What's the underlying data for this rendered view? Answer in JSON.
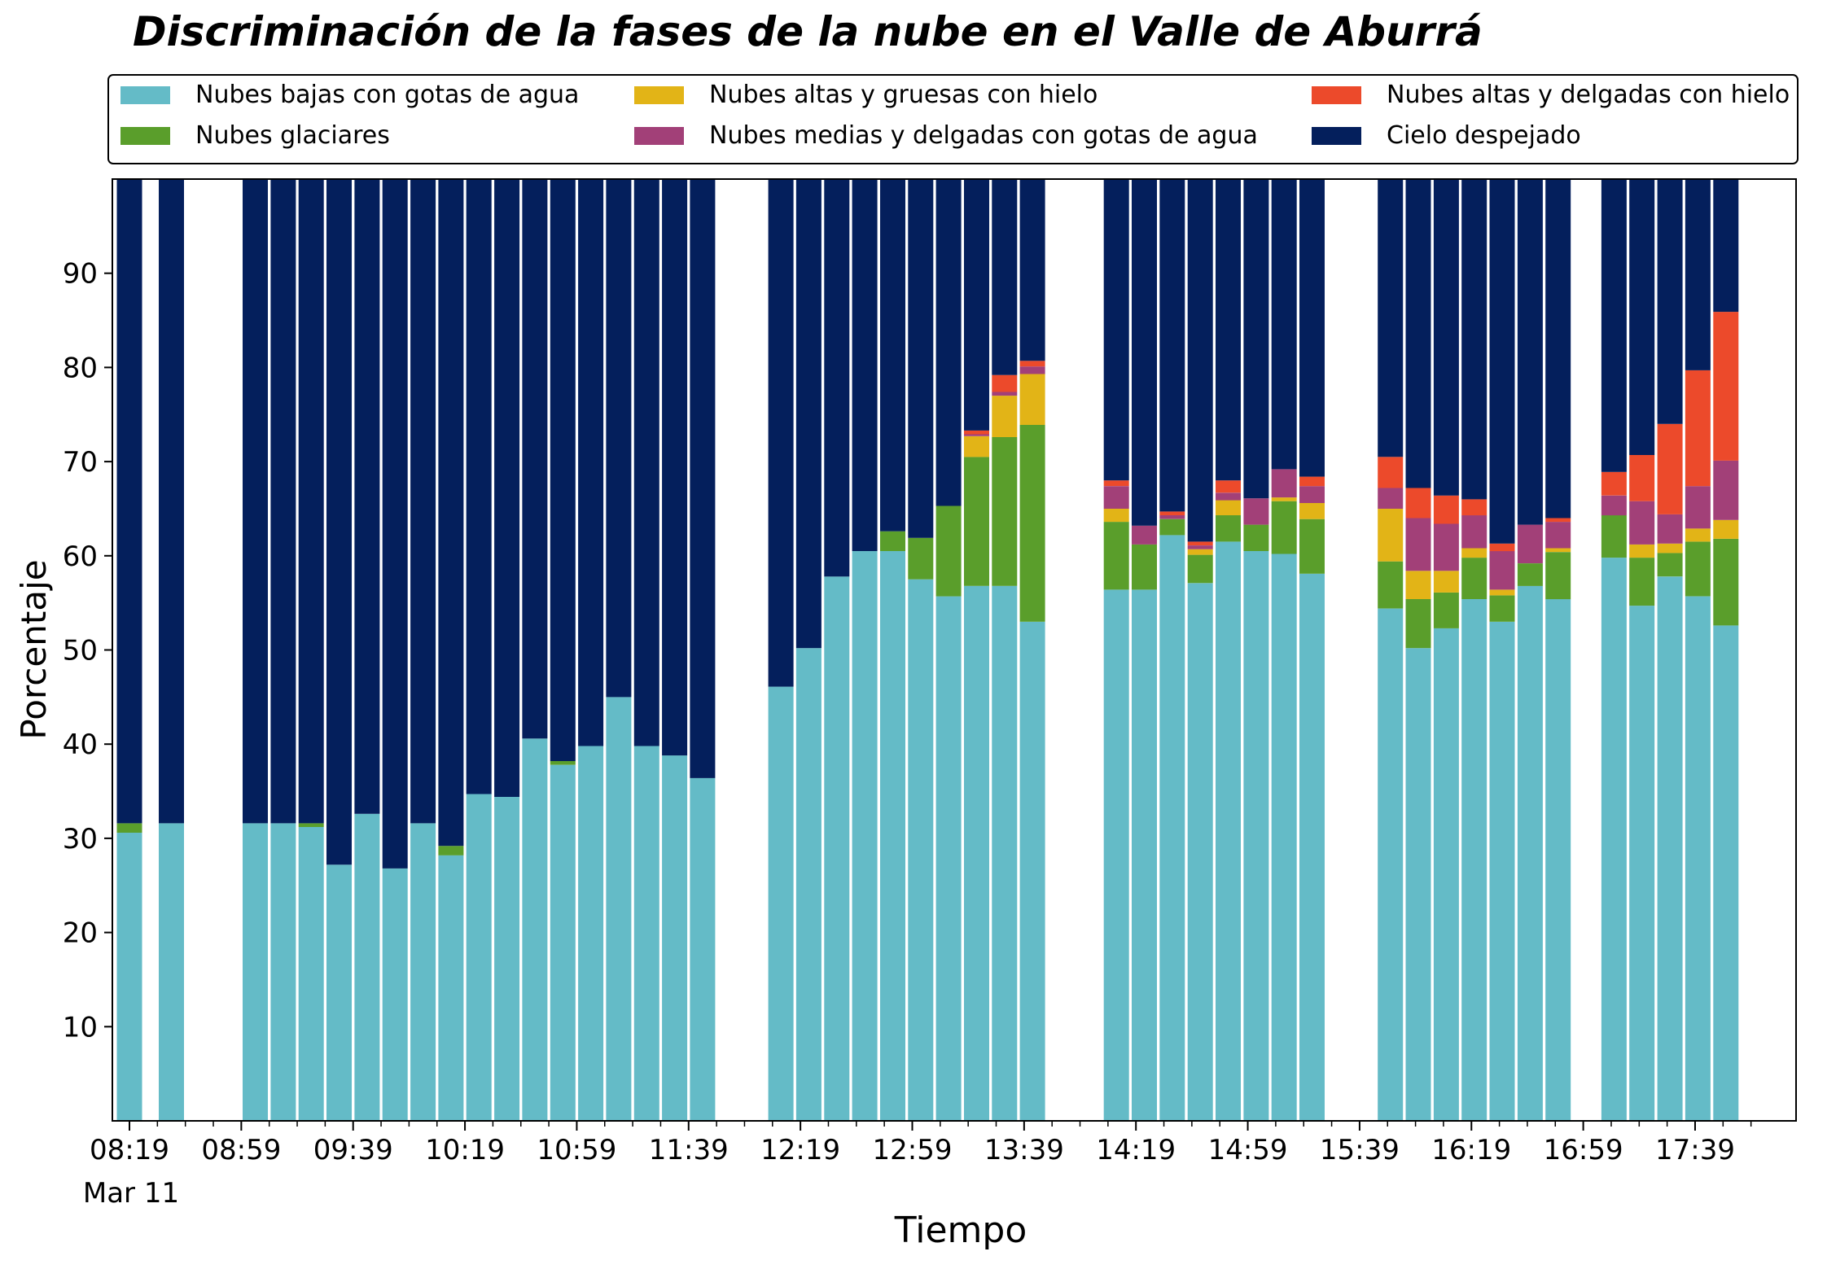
{
  "chart_data": {
    "type": "bar",
    "stacked": true,
    "title": "Discriminación de la fases de la nube en el Valle de Aburrá",
    "xlabel": "Tiempo",
    "ylabel": "Porcentaje",
    "ylim": [
      0,
      100
    ],
    "yticks": [
      10,
      20,
      30,
      40,
      50,
      60,
      70,
      80,
      90
    ],
    "grid": false,
    "legend_position": "top",
    "x_start": "08:19",
    "x_end": "18:09",
    "xticks": [
      {
        "time": "08:19",
        "label": "08:19",
        "sublabel": "Mar 11"
      },
      {
        "time": "08:59",
        "label": "08:59"
      },
      {
        "time": "09:39",
        "label": "09:39"
      },
      {
        "time": "10:19",
        "label": "10:19"
      },
      {
        "time": "10:59",
        "label": "10:59"
      },
      {
        "time": "11:39",
        "label": "11:39"
      },
      {
        "time": "12:19",
        "label": "12:19"
      },
      {
        "time": "12:59",
        "label": "12:59"
      },
      {
        "time": "13:39",
        "label": "13:39"
      },
      {
        "time": "14:19",
        "label": "14:19"
      },
      {
        "time": "14:59",
        "label": "14:59"
      },
      {
        "time": "15:39",
        "label": "15:39"
      },
      {
        "time": "16:19",
        "label": "16:19"
      },
      {
        "time": "16:59",
        "label": "16:59"
      },
      {
        "time": "17:39",
        "label": "17:39"
      }
    ],
    "x_minor_ticks": [
      "08:29",
      "08:39",
      "08:49",
      "09:09",
      "09:19",
      "09:29",
      "09:49",
      "09:59",
      "10:09",
      "10:29",
      "10:39",
      "10:49",
      "11:09",
      "11:19",
      "11:29",
      "11:49",
      "11:59",
      "12:09",
      "12:29",
      "12:39",
      "12:49",
      "13:09",
      "13:19",
      "13:29",
      "13:49",
      "13:59",
      "14:09",
      "14:29",
      "14:39",
      "14:49",
      "15:09",
      "15:19",
      "15:29",
      "15:49",
      "15:59",
      "16:09",
      "16:29",
      "16:39",
      "16:49",
      "17:09",
      "17:19",
      "17:29",
      "17:49",
      "17:59"
    ],
    "series": [
      {
        "name": "Nubes bajas con gotas de agua",
        "color": "#64BBC7"
      },
      {
        "name": "Nubes glaciares",
        "color": "#5A9E2B"
      },
      {
        "name": "Nubes altas y gruesas con hielo",
        "color": "#E2B417"
      },
      {
        "name": "Nubes medias y delgadas con gotas de agua",
        "color": "#A24078"
      },
      {
        "name": "Nubes altas y delgadas con hielo",
        "color": "#EC4A2B"
      },
      {
        "name": "Cielo despejado",
        "color": "#041F5C"
      }
    ],
    "bars": [
      {
        "time": "08:19",
        "values": [
          30.6,
          1.0,
          0,
          0,
          0,
          68.4
        ]
      },
      {
        "time": "08:34",
        "values": [
          31.6,
          0,
          0,
          0,
          0,
          68.4
        ]
      },
      {
        "time": "09:04",
        "values": [
          31.6,
          0,
          0,
          0,
          0,
          68.4
        ]
      },
      {
        "time": "09:14",
        "values": [
          31.6,
          0,
          0,
          0,
          0,
          68.4
        ]
      },
      {
        "time": "09:24",
        "values": [
          31.2,
          0.4,
          0,
          0,
          0,
          68.4
        ]
      },
      {
        "time": "09:34",
        "values": [
          27.2,
          0,
          0,
          0,
          0,
          72.8
        ]
      },
      {
        "time": "09:44",
        "values": [
          32.6,
          0,
          0,
          0,
          0,
          67.4
        ]
      },
      {
        "time": "09:54",
        "values": [
          26.8,
          0,
          0,
          0,
          0,
          73.2
        ]
      },
      {
        "time": "10:04",
        "values": [
          31.6,
          0,
          0,
          0,
          0,
          68.4
        ]
      },
      {
        "time": "10:14",
        "values": [
          28.2,
          1.0,
          0,
          0,
          0,
          70.8
        ]
      },
      {
        "time": "10:24",
        "values": [
          34.7,
          0,
          0,
          0,
          0,
          65.3
        ]
      },
      {
        "time": "10:34",
        "values": [
          34.4,
          0,
          0,
          0,
          0,
          65.6
        ]
      },
      {
        "time": "10:44",
        "values": [
          40.6,
          0,
          0,
          0,
          0,
          59.4
        ]
      },
      {
        "time": "10:54",
        "values": [
          37.8,
          0.4,
          0,
          0,
          0,
          61.8
        ]
      },
      {
        "time": "11:04",
        "values": [
          39.8,
          0,
          0,
          0,
          0,
          60.2
        ]
      },
      {
        "time": "11:14",
        "values": [
          45.0,
          0,
          0,
          0,
          0,
          55.0
        ]
      },
      {
        "time": "11:24",
        "values": [
          39.8,
          0,
          0,
          0,
          0,
          60.2
        ]
      },
      {
        "time": "11:34",
        "values": [
          38.8,
          0,
          0,
          0,
          0,
          61.2
        ]
      },
      {
        "time": "11:44",
        "values": [
          36.4,
          0,
          0,
          0,
          0,
          63.6
        ]
      },
      {
        "time": "12:12",
        "values": [
          46.1,
          0,
          0,
          0,
          0,
          53.9
        ]
      },
      {
        "time": "12:22",
        "values": [
          50.2,
          0,
          0,
          0,
          0,
          49.8
        ]
      },
      {
        "time": "12:32",
        "values": [
          57.8,
          0,
          0,
          0,
          0,
          42.2
        ]
      },
      {
        "time": "12:42",
        "values": [
          60.5,
          0,
          0,
          0,
          0,
          39.5
        ]
      },
      {
        "time": "12:52",
        "values": [
          60.5,
          2.1,
          0,
          0,
          0,
          37.4
        ]
      },
      {
        "time": "13:02",
        "values": [
          57.5,
          4.4,
          0,
          0,
          0,
          38.1
        ]
      },
      {
        "time": "13:12",
        "values": [
          55.7,
          9.6,
          0,
          0,
          0,
          34.7
        ]
      },
      {
        "time": "13:22",
        "values": [
          56.8,
          13.7,
          2.2,
          0.2,
          0.4,
          26.7
        ]
      },
      {
        "time": "13:32",
        "values": [
          56.8,
          15.8,
          4.4,
          0.4,
          1.8,
          20.8
        ]
      },
      {
        "time": "13:42",
        "values": [
          53.0,
          20.9,
          5.4,
          0.8,
          0.6,
          19.3
        ]
      },
      {
        "time": "14:12",
        "values": [
          56.4,
          7.2,
          1.4,
          2.4,
          0.6,
          32.0
        ]
      },
      {
        "time": "14:22",
        "values": [
          56.4,
          4.8,
          0,
          2.0,
          0,
          36.8
        ]
      },
      {
        "time": "14:32",
        "values": [
          62.2,
          1.7,
          0,
          0.4,
          0.4,
          35.3
        ]
      },
      {
        "time": "14:42",
        "values": [
          57.1,
          3.0,
          0.6,
          0.4,
          0.4,
          38.5
        ]
      },
      {
        "time": "14:52",
        "values": [
          61.5,
          2.8,
          1.6,
          0.8,
          1.3,
          32.0
        ]
      },
      {
        "time": "15:02",
        "values": [
          60.5,
          2.8,
          0,
          2.8,
          0,
          33.9
        ]
      },
      {
        "time": "15:12",
        "values": [
          60.2,
          5.6,
          0.4,
          3.0,
          0,
          30.8
        ]
      },
      {
        "time": "15:22",
        "values": [
          58.1,
          5.8,
          1.7,
          1.8,
          1.0,
          31.6
        ]
      },
      {
        "time": "15:50",
        "values": [
          54.4,
          5.0,
          5.6,
          2.2,
          3.3,
          29.5
        ]
      },
      {
        "time": "16:00",
        "values": [
          50.2,
          5.2,
          3.0,
          5.6,
          3.2,
          32.8
        ]
      },
      {
        "time": "16:10",
        "values": [
          52.3,
          3.8,
          2.3,
          5.0,
          3.0,
          33.6
        ]
      },
      {
        "time": "16:20",
        "values": [
          55.4,
          4.4,
          1.0,
          3.5,
          1.7,
          34.0
        ]
      },
      {
        "time": "16:30",
        "values": [
          53.0,
          2.8,
          0.6,
          4.1,
          0.8,
          38.7
        ]
      },
      {
        "time": "16:40",
        "values": [
          56.8,
          2.4,
          0,
          4.1,
          0,
          36.7
        ]
      },
      {
        "time": "16:50",
        "values": [
          55.4,
          5.0,
          0.4,
          2.8,
          0.4,
          36.0
        ]
      },
      {
        "time": "17:10",
        "values": [
          59.8,
          4.5,
          0,
          2.1,
          2.5,
          31.1
        ]
      },
      {
        "time": "17:20",
        "values": [
          54.7,
          5.1,
          1.4,
          4.6,
          4.9,
          29.3
        ]
      },
      {
        "time": "17:30",
        "values": [
          57.8,
          2.5,
          1.0,
          3.1,
          9.6,
          26.0
        ]
      },
      {
        "time": "17:40",
        "values": [
          55.7,
          5.8,
          1.4,
          4.5,
          12.3,
          20.3
        ]
      },
      {
        "time": "17:50",
        "values": [
          52.6,
          9.2,
          2.0,
          6.3,
          15.8,
          14.1
        ]
      }
    ]
  }
}
